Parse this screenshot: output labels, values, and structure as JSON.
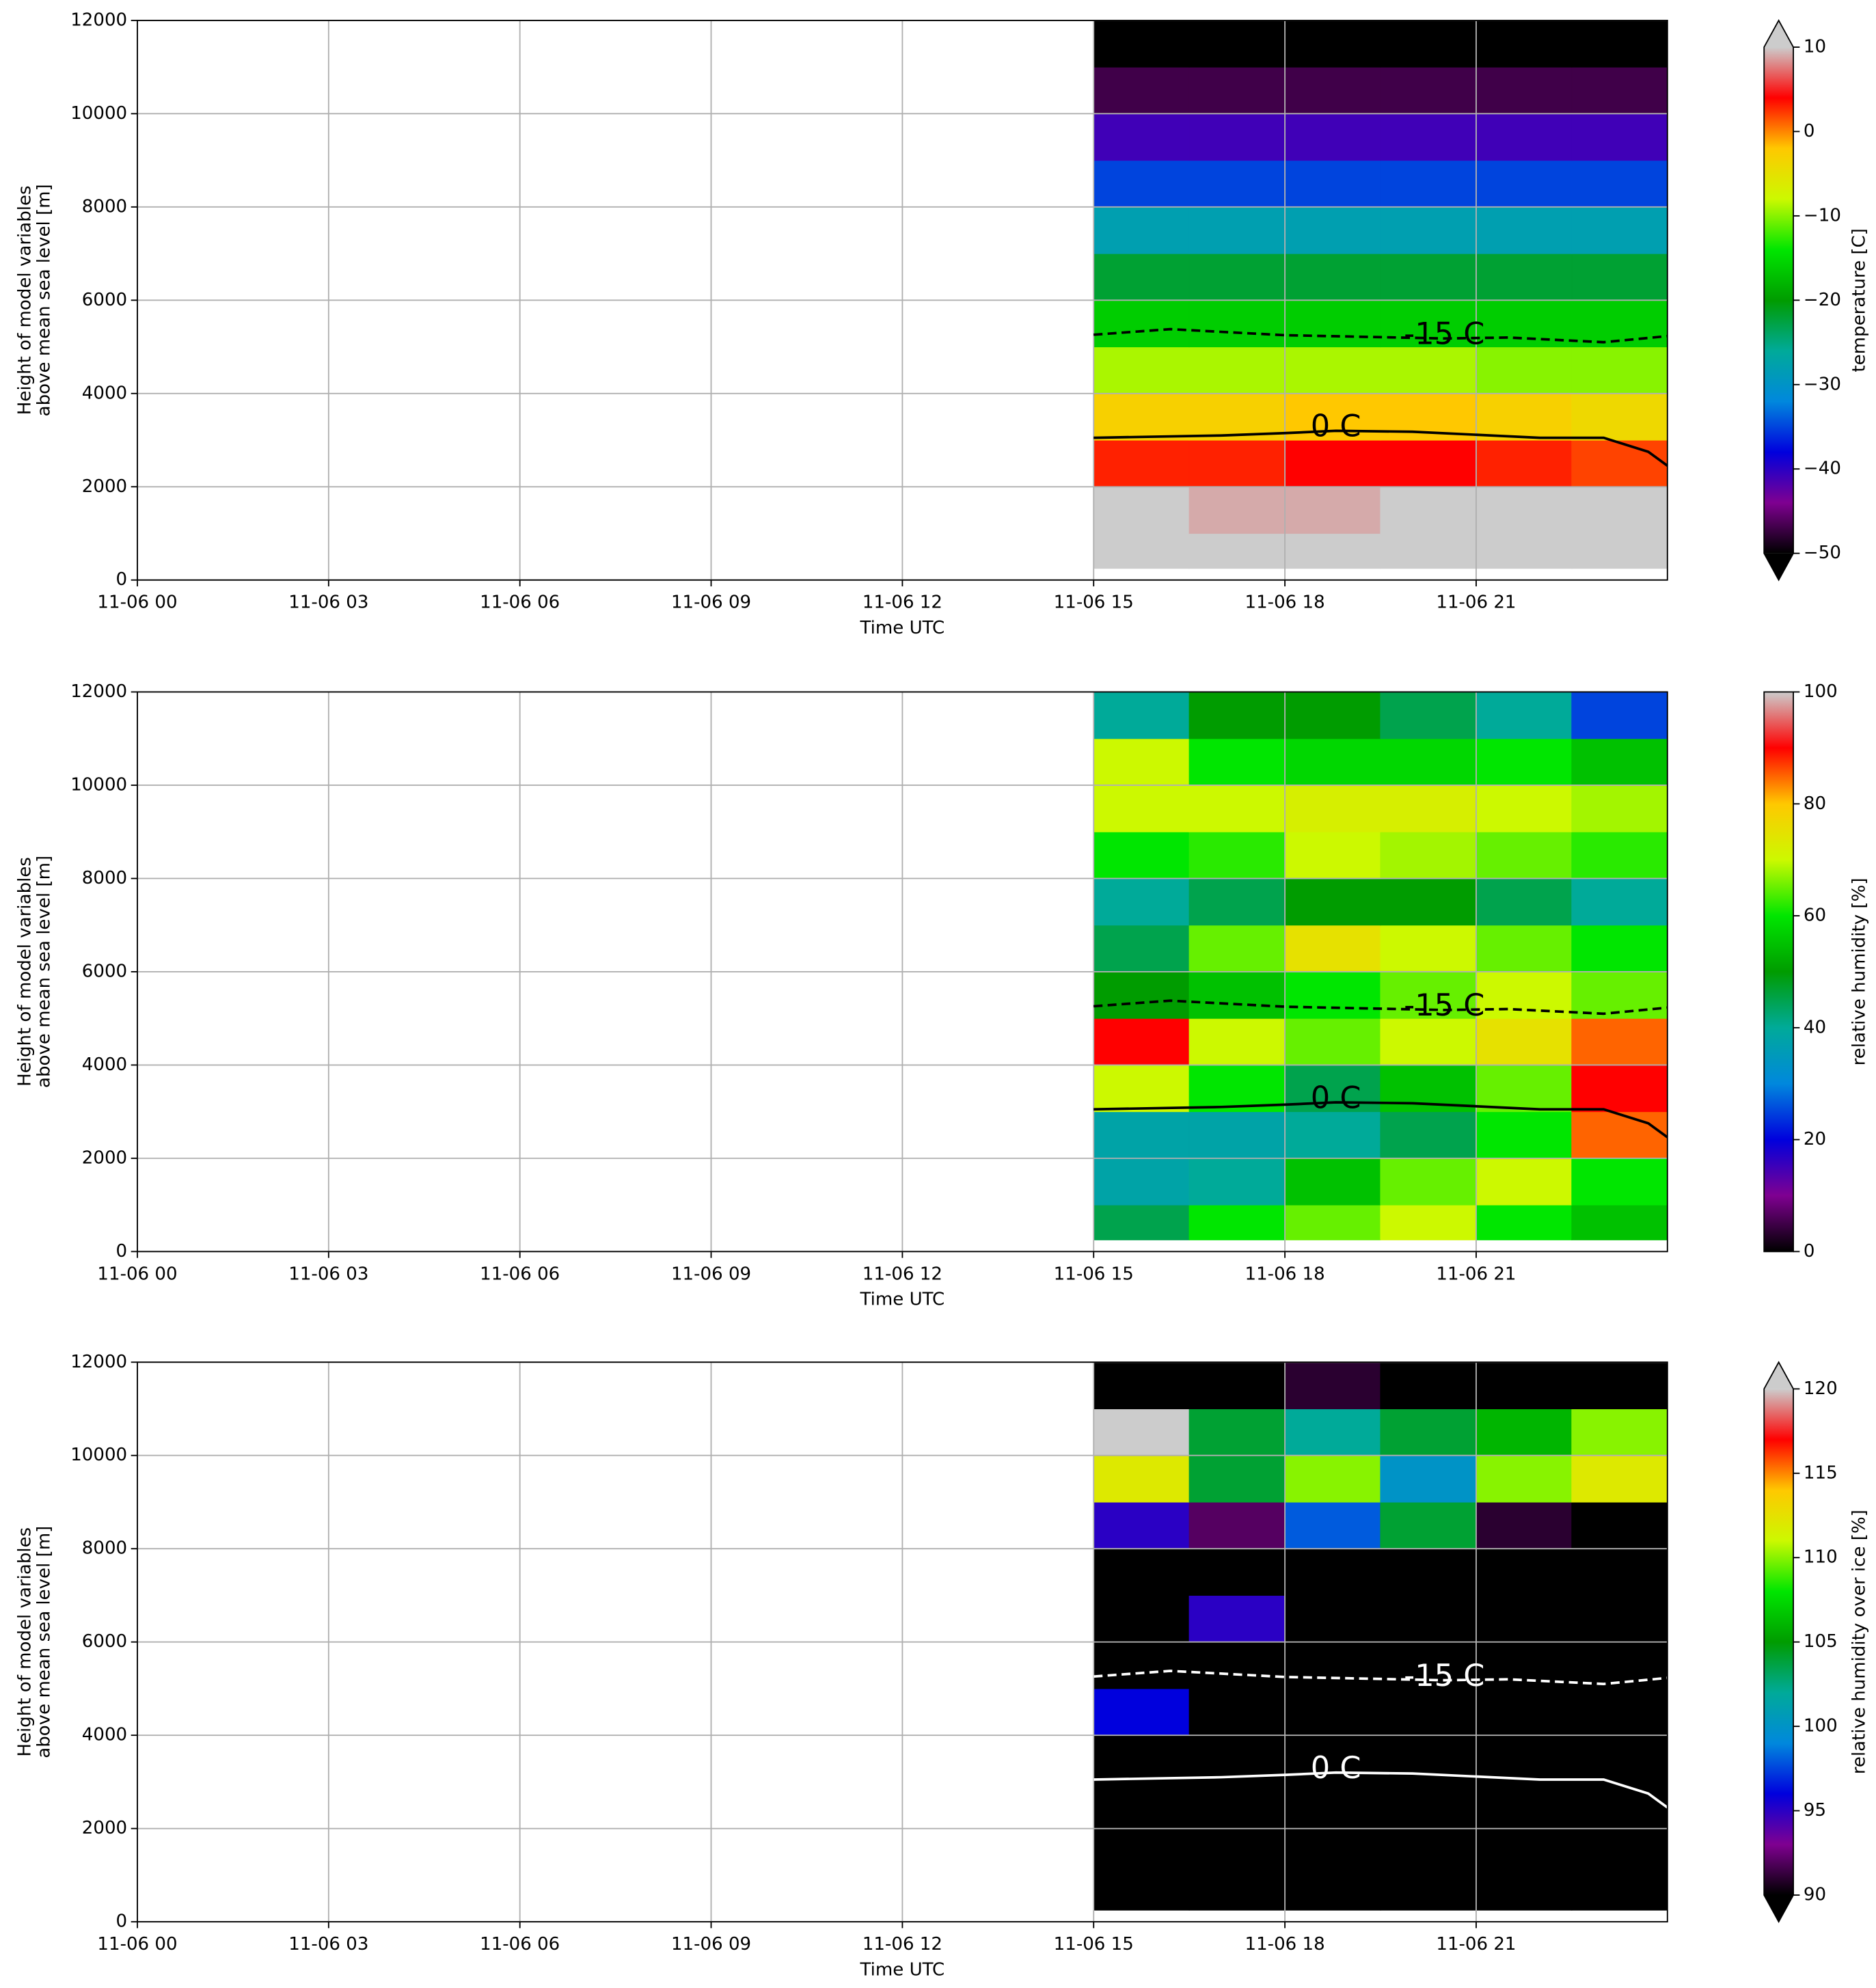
{
  "chart_data": [
    {
      "type": "heatmap",
      "xlabel": "Time UTC",
      "ylabel": [
        "Height of model variables",
        "above mean sea level [m]"
      ],
      "xlim": [
        0,
        24
      ],
      "ylim": [
        0,
        12000
      ],
      "xticks": [
        {
          "value": 0,
          "label": "11-06 00"
        },
        {
          "value": 3,
          "label": "11-06 03"
        },
        {
          "value": 6,
          "label": "11-06 06"
        },
        {
          "value": 9,
          "label": "11-06 09"
        },
        {
          "value": 12,
          "label": "11-06 12"
        },
        {
          "value": 15,
          "label": "11-06 15"
        },
        {
          "value": 18,
          "label": "11-06 18"
        },
        {
          "value": 21,
          "label": "11-06 21"
        }
      ],
      "yticks": [
        0,
        2000,
        4000,
        6000,
        8000,
        10000,
        12000
      ],
      "grid": true,
      "x_edges": [
        15,
        16.5,
        18,
        19.5,
        21,
        22.5,
        24
      ],
      "y_edges": [
        250,
        1000,
        2000,
        3000,
        4000,
        5000,
        6000,
        7000,
        8000,
        9000,
        10000,
        11000,
        12000
      ],
      "z": [
        [
          14,
          14,
          15,
          16,
          16,
          15
        ],
        [
          11,
          9,
          9,
          10,
          10,
          10
        ],
        [
          3,
          3,
          4,
          4,
          3,
          2
        ],
        [
          -3,
          -3,
          -2,
          -2,
          -3,
          -4
        ],
        [
          -9,
          -9,
          -9,
          -9,
          -10,
          -10
        ],
        [
          -16,
          -16,
          -16,
          -16,
          -16,
          -16
        ],
        [
          -22,
          -22,
          -22,
          -22,
          -22,
          -22
        ],
        [
          -28,
          -28,
          -28,
          -28,
          -28,
          -28
        ],
        [
          -35,
          -35,
          -35,
          -35,
          -35,
          -35
        ],
        [
          -41,
          -41,
          -41,
          -41,
          -41,
          -41
        ],
        [
          -47,
          -47,
          -47,
          -47,
          -47,
          -47
        ],
        [
          -55,
          -55,
          -55,
          -55,
          -55,
          -55
        ]
      ],
      "colormap": [
        "#000000",
        "#7f0091",
        "#0000dd",
        "#0088dd",
        "#00aa99",
        "#009c00",
        "#00e600",
        "#ccf900",
        "#ffc800",
        "#ff0000",
        "#cccccc"
      ],
      "over_color": "#cccccc",
      "under_color": "#000000",
      "extend": "both",
      "clim": [
        -50,
        10
      ],
      "cticks": [
        {
          "value": -50,
          "label": "−50"
        },
        {
          "value": -40,
          "label": "−40"
        },
        {
          "value": -30,
          "label": "−30"
        },
        {
          "value": -20,
          "label": "−20"
        },
        {
          "value": -10,
          "label": "−10"
        },
        0,
        10
      ],
      "colorbar_label": "temperature [C]",
      "contours": [
        {
          "label": "-15 C",
          "linestyle": "dashed",
          "color": "#000000",
          "x": [
            15,
            16.2,
            18,
            20.5,
            21.5,
            23,
            24
          ],
          "y": [
            5260,
            5380,
            5250,
            5180,
            5200,
            5100,
            5230
          ]
        },
        {
          "label": "0 C",
          "linestyle": "solid",
          "color": "#000000",
          "x": [
            15,
            17,
            18,
            18.8,
            20,
            22,
            23,
            23.7,
            24
          ],
          "y": [
            3050,
            3100,
            3150,
            3200,
            3180,
            3050,
            3050,
            2750,
            2450
          ]
        }
      ]
    },
    {
      "type": "heatmap",
      "xlabel": "Time UTC",
      "ylabel": [
        "Height of model variables",
        "above mean sea level [m]"
      ],
      "xlim": [
        0,
        24
      ],
      "ylim": [
        0,
        12000
      ],
      "xticks": [
        {
          "value": 0,
          "label": "11-06 00"
        },
        {
          "value": 3,
          "label": "11-06 03"
        },
        {
          "value": 6,
          "label": "11-06 06"
        },
        {
          "value": 9,
          "label": "11-06 09"
        },
        {
          "value": 12,
          "label": "11-06 12"
        },
        {
          "value": 15,
          "label": "11-06 15"
        },
        {
          "value": 18,
          "label": "11-06 18"
        },
        {
          "value": 21,
          "label": "11-06 21"
        }
      ],
      "yticks": [
        0,
        2000,
        4000,
        6000,
        8000,
        10000,
        12000
      ],
      "grid": true,
      "x_edges": [
        15,
        16.5,
        18,
        19.5,
        21,
        22.5,
        24
      ],
      "y_edges": [
        250,
        1000,
        2000,
        3000,
        4000,
        5000,
        6000,
        7000,
        8000,
        9000,
        10000,
        11000,
        12000
      ],
      "z": [
        [
          45,
          60,
          65,
          70,
          60,
          55
        ],
        [
          38,
          40,
          55,
          65,
          70,
          60
        ],
        [
          38,
          38,
          40,
          45,
          60,
          85
        ],
        [
          70,
          60,
          45,
          55,
          65,
          90
        ],
        [
          90,
          70,
          65,
          70,
          75,
          85
        ],
        [
          50,
          55,
          60,
          65,
          70,
          65
        ],
        [
          45,
          65,
          75,
          70,
          65,
          60
        ],
        [
          40,
          45,
          50,
          50,
          45,
          40
        ],
        [
          60,
          62,
          70,
          68,
          65,
          62
        ],
        [
          70,
          70,
          72,
          72,
          70,
          68
        ],
        [
          70,
          60,
          58,
          58,
          60,
          55
        ],
        [
          40,
          50,
          50,
          45,
          40,
          25
        ]
      ],
      "colormap": [
        "#000000",
        "#7f0091",
        "#0000dd",
        "#0088dd",
        "#00aa99",
        "#009c00",
        "#00e600",
        "#ccf900",
        "#ffc800",
        "#ff0000",
        "#cccccc"
      ],
      "extend": "neither",
      "clim": [
        0,
        100
      ],
      "cticks": [
        0,
        20,
        40,
        60,
        80,
        100
      ],
      "colorbar_label": "relative humidity [%]",
      "contours": [
        {
          "label": "-15 C",
          "linestyle": "dashed",
          "color": "#000000",
          "x": [
            15,
            16.2,
            18,
            20.5,
            21.5,
            23,
            24
          ],
          "y": [
            5260,
            5380,
            5250,
            5180,
            5200,
            5100,
            5230
          ]
        },
        {
          "label": "0 C",
          "linestyle": "solid",
          "color": "#000000",
          "x": [
            15,
            17,
            18,
            18.8,
            20,
            22,
            23,
            23.7,
            24
          ],
          "y": [
            3050,
            3100,
            3150,
            3200,
            3180,
            3050,
            3050,
            2750,
            2450
          ]
        }
      ]
    },
    {
      "type": "heatmap",
      "xlabel": "Time UTC",
      "ylabel": [
        "Height of model variables",
        "above mean sea level [m]"
      ],
      "xlim": [
        0,
        24
      ],
      "ylim": [
        0,
        12000
      ],
      "xticks": [
        {
          "value": 0,
          "label": "11-06 00"
        },
        {
          "value": 3,
          "label": "11-06 03"
        },
        {
          "value": 6,
          "label": "11-06 06"
        },
        {
          "value": 9,
          "label": "11-06 09"
        },
        {
          "value": 12,
          "label": "11-06 12"
        },
        {
          "value": 15,
          "label": "11-06 15"
        },
        {
          "value": 18,
          "label": "11-06 18"
        },
        {
          "value": 21,
          "label": "11-06 21"
        }
      ],
      "yticks": [
        0,
        2000,
        4000,
        6000,
        8000,
        10000,
        12000
      ],
      "grid": true,
      "x_edges": [
        15,
        16.5,
        18,
        19.5,
        21,
        22.5,
        24
      ],
      "y_edges": [
        250,
        1000,
        2000,
        3000,
        4000,
        5000,
        6000,
        7000,
        8000,
        9000,
        10000,
        11000,
        12000
      ],
      "z": [
        [
          80,
          80,
          80,
          80,
          80,
          80
        ],
        [
          80,
          80,
          80,
          80,
          80,
          80
        ],
        [
          80,
          80,
          80,
          80,
          80,
          80
        ],
        [
          80,
          80,
          80,
          80,
          80,
          80
        ],
        [
          96,
          80,
          80,
          80,
          80,
          80
        ],
        [
          80,
          80,
          80,
          80,
          80,
          80
        ],
        [
          80,
          95,
          85,
          80,
          89,
          85
        ],
        [
          80,
          80,
          80,
          80,
          80,
          80
        ],
        [
          95,
          92,
          98,
          104,
          91,
          90
        ],
        [
          112,
          104,
          110,
          100,
          110,
          112
        ],
        [
          122,
          104,
          102,
          104,
          106,
          110
        ],
        [
          85,
          88,
          91,
          86,
          85,
          87
        ]
      ],
      "colormap": [
        "#000000",
        "#7f0091",
        "#0000dd",
        "#0088dd",
        "#00aa99",
        "#009c00",
        "#00e600",
        "#ccf900",
        "#ffc800",
        "#ff0000",
        "#cccccc"
      ],
      "over_color": "#cccccc",
      "under_color": "#000000",
      "extend": "both",
      "clim": [
        90,
        120
      ],
      "cticks": [
        90,
        95,
        100,
        105,
        110,
        115,
        120
      ],
      "colorbar_label": "relative humidity over ice [%]",
      "contours": [
        {
          "label": "-15 C",
          "linestyle": "dashed",
          "color": "#ffffff",
          "x": [
            15,
            16.2,
            18,
            20.5,
            21.5,
            23,
            24
          ],
          "y": [
            5260,
            5380,
            5250,
            5180,
            5200,
            5100,
            5230
          ]
        },
        {
          "label": "0 C",
          "linestyle": "solid",
          "color": "#ffffff",
          "x": [
            15,
            17,
            18,
            18.8,
            20,
            22,
            23,
            23.7,
            24
          ],
          "y": [
            3050,
            3100,
            3150,
            3200,
            3180,
            3050,
            3050,
            2750,
            2450
          ]
        }
      ]
    }
  ]
}
